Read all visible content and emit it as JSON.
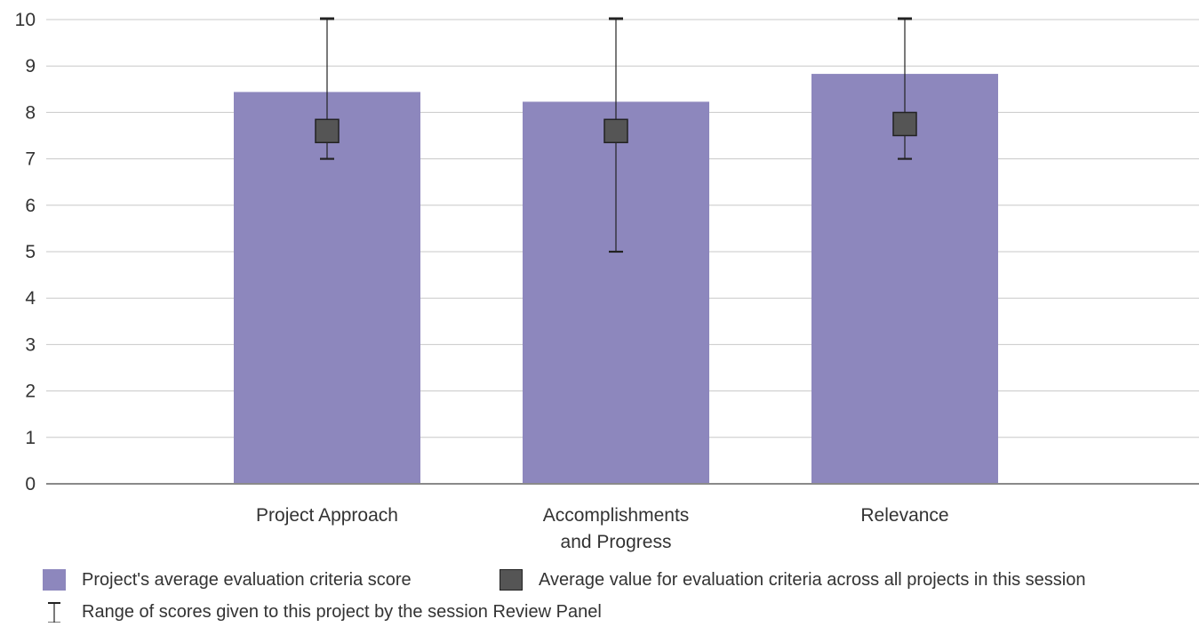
{
  "chart_data": {
    "type": "bar",
    "categories": [
      [
        "Project Approach"
      ],
      [
        "Accomplishments",
        "and Progress"
      ],
      [
        "Relevance"
      ]
    ],
    "series": [
      {
        "name": "Project's average evaluation criteria score",
        "values": [
          8.44,
          8.23,
          8.83
        ],
        "color": "#8d87bd"
      },
      {
        "name": "Average value for evaluation criteria across all projects in this session",
        "values": [
          7.6,
          7.6,
          7.75
        ],
        "color": "#555555"
      }
    ],
    "range": {
      "name": "Range of scores given to this project by the session Review Panel",
      "low": [
        7.0,
        5.0,
        7.0
      ],
      "high": [
        10.0,
        10.0,
        10.0
      ]
    },
    "ylim": [
      0,
      10
    ],
    "yticks": [
      "0",
      "1",
      "2",
      "3",
      "4",
      "5",
      "6",
      "7",
      "8",
      "9",
      "10"
    ],
    "grid": true,
    "legend": "bottom"
  },
  "legend": {
    "bar": "Project's average evaluation criteria score",
    "marker": "Average value for evaluation criteria across all projects in this session",
    "range": "Range of scores given to this project by the session Review Panel"
  }
}
